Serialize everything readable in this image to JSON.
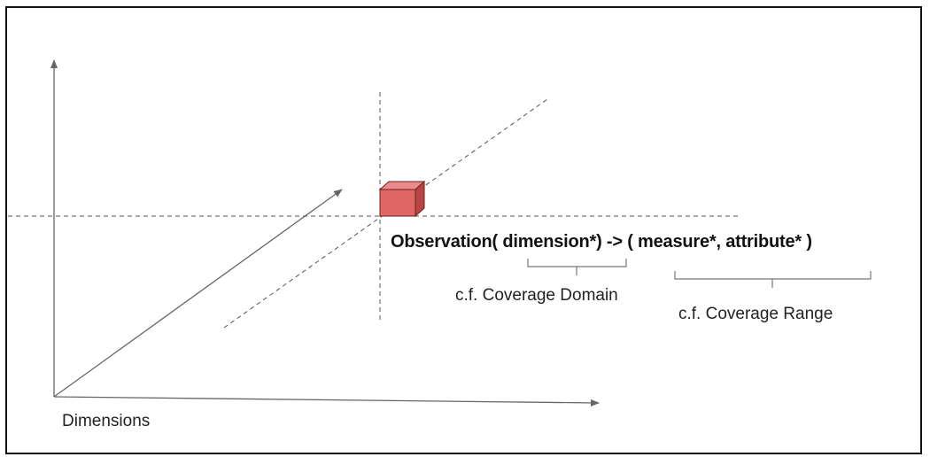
{
  "labels": {
    "formula": "Observation( dimension*) -> ( measure*, attribute* )",
    "domain": "c.f. Coverage Domain",
    "range": "c.f. Coverage Range",
    "dimensions": "Dimensions"
  },
  "colors": {
    "axis": "#666666",
    "dashed": "#555555",
    "cube_front": "#e06666",
    "cube_top": "#ea8a8a",
    "cube_side": "#b84444",
    "cube_edge": "#6b1f1f",
    "brace": "#777777"
  }
}
